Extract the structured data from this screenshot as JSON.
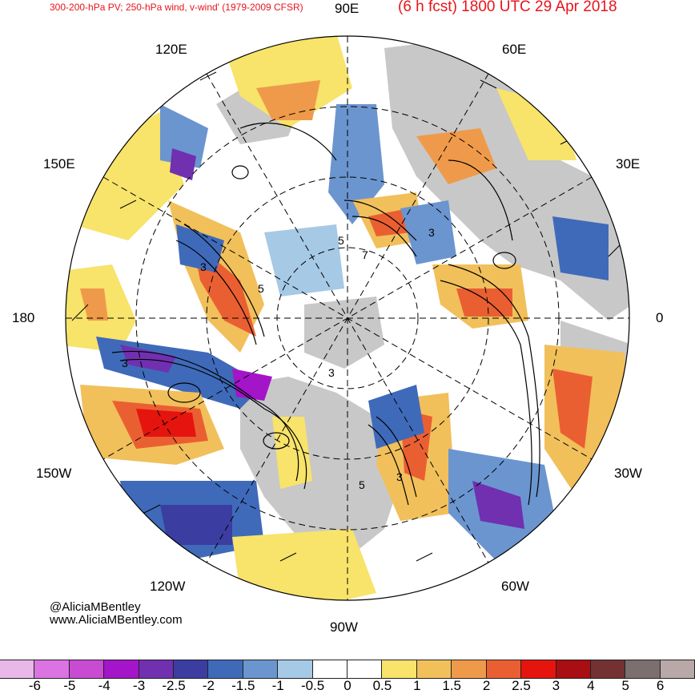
{
  "header": {
    "left_title": "300-200-hPa PV; 250-hPa wind, v-wind' (1979-2009 CFSR)",
    "right_title": "(6 h fcst) 1800 UTC 29 Apr 2018"
  },
  "lon_labels": {
    "e90": "90E",
    "e60": "60E",
    "e120": "120E",
    "e150": "150E",
    "e30": "30E",
    "w180": "180",
    "zero": "0",
    "w150": "150W",
    "w30": "30W",
    "w120": "120W",
    "w60": "60W",
    "w90": "90W"
  },
  "credit": {
    "handle": "@AliciaMBentley",
    "site": "www.AliciaMBentley.com"
  },
  "contour_labels": [
    "5",
    "3",
    "5",
    "3",
    "7",
    "3",
    "3",
    "5",
    "3"
  ],
  "colorbar": {
    "colors": [
      "#e7b8e8",
      "#db73e2",
      "#c94bd4",
      "#a414c9",
      "#7030b0",
      "#3b3da0",
      "#3f6ab9",
      "#6b95cf",
      "#a6c9e6",
      "#ffffff",
      "#ffffff",
      "#f8e36b",
      "#f1c05b",
      "#ef9a4a",
      "#ea5f32",
      "#e5140f",
      "#a80e12",
      "#733131",
      "#7b6f6f",
      "#b8a8a8"
    ],
    "ticks": [
      "-6",
      "-5",
      "-4",
      "-3",
      "-2.5",
      "-2",
      "-1.5",
      "-1",
      "-0.5",
      "0",
      "0.5",
      "1",
      "1.5",
      "2",
      "2.5",
      "3",
      "4",
      "5",
      "6"
    ]
  }
}
